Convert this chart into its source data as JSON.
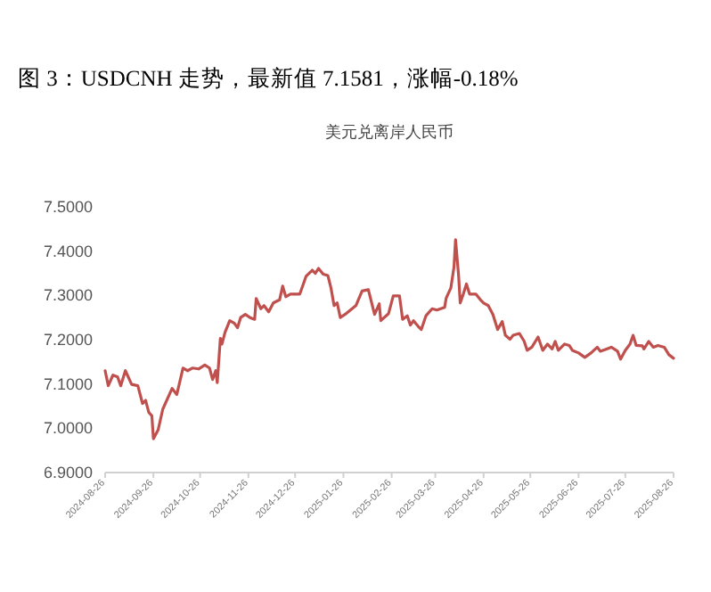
{
  "chart_data": {
    "type": "line",
    "title": "图 3：USDCNH 走势，最新值 7.1581，涨幅-0.18%",
    "subtitle": "美元兑离岸人民币",
    "x": [
      "2024-08-26",
      "2024-08-28",
      "2024-08-31",
      "2024-09-03",
      "2024-09-05",
      "2024-09-08",
      "2024-09-12",
      "2024-09-16",
      "2024-09-19",
      "2024-09-21",
      "2024-09-23",
      "2024-09-25",
      "2024-09-26",
      "2024-09-29",
      "2024-10-02",
      "2024-10-08",
      "2024-10-11",
      "2024-10-15",
      "2024-10-18",
      "2024-10-21",
      "2024-10-25",
      "2024-10-29",
      "2024-11-01",
      "2024-11-03",
      "2024-11-05",
      "2024-11-06",
      "2024-11-08",
      "2024-11-09",
      "2024-11-11",
      "2024-11-14",
      "2024-11-17",
      "2024-11-19",
      "2024-11-21",
      "2024-11-24",
      "2024-11-27",
      "2024-11-30",
      "2024-12-01",
      "2024-12-04",
      "2024-12-06",
      "2024-12-09",
      "2024-12-12",
      "2024-12-16",
      "2024-12-18",
      "2024-12-20",
      "2024-12-23",
      "2024-12-29",
      "2025-01-02",
      "2025-01-06",
      "2025-01-08",
      "2025-01-10",
      "2025-01-13",
      "2025-01-16",
      "2025-01-18",
      "2025-01-20",
      "2025-01-22",
      "2025-01-24",
      "2025-01-27",
      "2025-02-03",
      "2025-02-07",
      "2025-02-11",
      "2025-02-15",
      "2025-02-18",
      "2025-02-19",
      "2025-02-24",
      "2025-02-27",
      "2025-03-03",
      "2025-03-05",
      "2025-03-08",
      "2025-03-10",
      "2025-03-12",
      "2025-03-15",
      "2025-03-17",
      "2025-03-20",
      "2025-03-24",
      "2025-03-27",
      "2025-04-01",
      "2025-04-02",
      "2025-04-05",
      "2025-04-07",
      "2025-04-08",
      "2025-04-10",
      "2025-04-11",
      "2025-04-13",
      "2025-04-15",
      "2025-04-17",
      "2025-04-21",
      "2025-04-24",
      "2025-04-26",
      "2025-04-29",
      "2025-05-02",
      "2025-05-05",
      "2025-05-08",
      "2025-05-10",
      "2025-05-13",
      "2025-05-15",
      "2025-05-19",
      "2025-05-22",
      "2025-05-24",
      "2025-05-27",
      "2025-05-31",
      "2025-06-03",
      "2025-06-06",
      "2025-06-09",
      "2025-06-11",
      "2025-06-13",
      "2025-06-17",
      "2025-06-20",
      "2025-06-22",
      "2025-06-26",
      "2025-06-30",
      "2025-07-04",
      "2025-07-08",
      "2025-07-10",
      "2025-07-14",
      "2025-07-17",
      "2025-07-21",
      "2025-07-23",
      "2025-07-26",
      "2025-07-29",
      "2025-07-31",
      "2025-08-02",
      "2025-08-06",
      "2025-08-07",
      "2025-08-10",
      "2025-08-13",
      "2025-08-16",
      "2025-08-20",
      "2025-08-23",
      "2025-08-26"
    ],
    "series": [
      {
        "color": "#c0504d",
        "values": [
          7.13,
          7.096,
          7.12,
          7.116,
          7.096,
          7.13,
          7.099,
          7.096,
          7.056,
          7.063,
          7.036,
          7.028,
          6.976,
          6.996,
          7.043,
          7.09,
          7.076,
          7.136,
          7.13,
          7.136,
          7.134,
          7.143,
          7.136,
          7.11,
          7.13,
          7.103,
          7.203,
          7.19,
          7.217,
          7.243,
          7.237,
          7.227,
          7.25,
          7.257,
          7.25,
          7.246,
          7.293,
          7.27,
          7.277,
          7.263,
          7.283,
          7.29,
          7.321,
          7.297,
          7.303,
          7.303,
          7.343,
          7.357,
          7.35,
          7.361,
          7.348,
          7.345,
          7.317,
          7.277,
          7.283,
          7.25,
          7.257,
          7.277,
          7.31,
          7.313,
          7.257,
          7.281,
          7.243,
          7.259,
          7.299,
          7.299,
          7.246,
          7.254,
          7.233,
          7.243,
          7.23,
          7.223,
          7.254,
          7.27,
          7.267,
          7.273,
          7.294,
          7.317,
          7.364,
          7.426,
          7.343,
          7.283,
          7.303,
          7.326,
          7.303,
          7.303,
          7.29,
          7.283,
          7.277,
          7.257,
          7.223,
          7.241,
          7.21,
          7.201,
          7.21,
          7.214,
          7.197,
          7.176,
          7.183,
          7.206,
          7.176,
          7.19,
          7.179,
          7.196,
          7.176,
          7.19,
          7.187,
          7.176,
          7.17,
          7.16,
          7.17,
          7.183,
          7.174,
          7.179,
          7.183,
          7.174,
          7.156,
          7.176,
          7.19,
          7.21,
          7.187,
          7.186,
          7.179,
          7.196,
          7.183,
          7.187,
          7.183,
          7.166,
          7.158
        ]
      }
    ],
    "xlim": [
      "2024-08-26",
      "2025-08-26"
    ],
    "xticks": [
      "2024-08-26",
      "2024-09-26",
      "2024-10-26",
      "2024-11-26",
      "2024-12-26",
      "2025-01-26",
      "2025-02-26",
      "2025-03-26",
      "2025-04-26",
      "2025-05-26",
      "2025-06-26",
      "2025-07-26",
      "2025-08-26"
    ],
    "ylim": [
      6.9,
      7.5
    ],
    "yticks": [
      {
        "value": 6.9,
        "label": "6.9000"
      },
      {
        "value": 7.0,
        "label": "7.0000"
      },
      {
        "value": 7.1,
        "label": "7.1000"
      },
      {
        "value": 7.2,
        "label": "7.2000"
      },
      {
        "value": 7.3,
        "label": "7.3000"
      },
      {
        "value": 7.4,
        "label": "7.4000"
      },
      {
        "value": 7.5,
        "label": "7.5000"
      }
    ],
    "grid": false,
    "marker": "none",
    "line_style": "solid"
  }
}
